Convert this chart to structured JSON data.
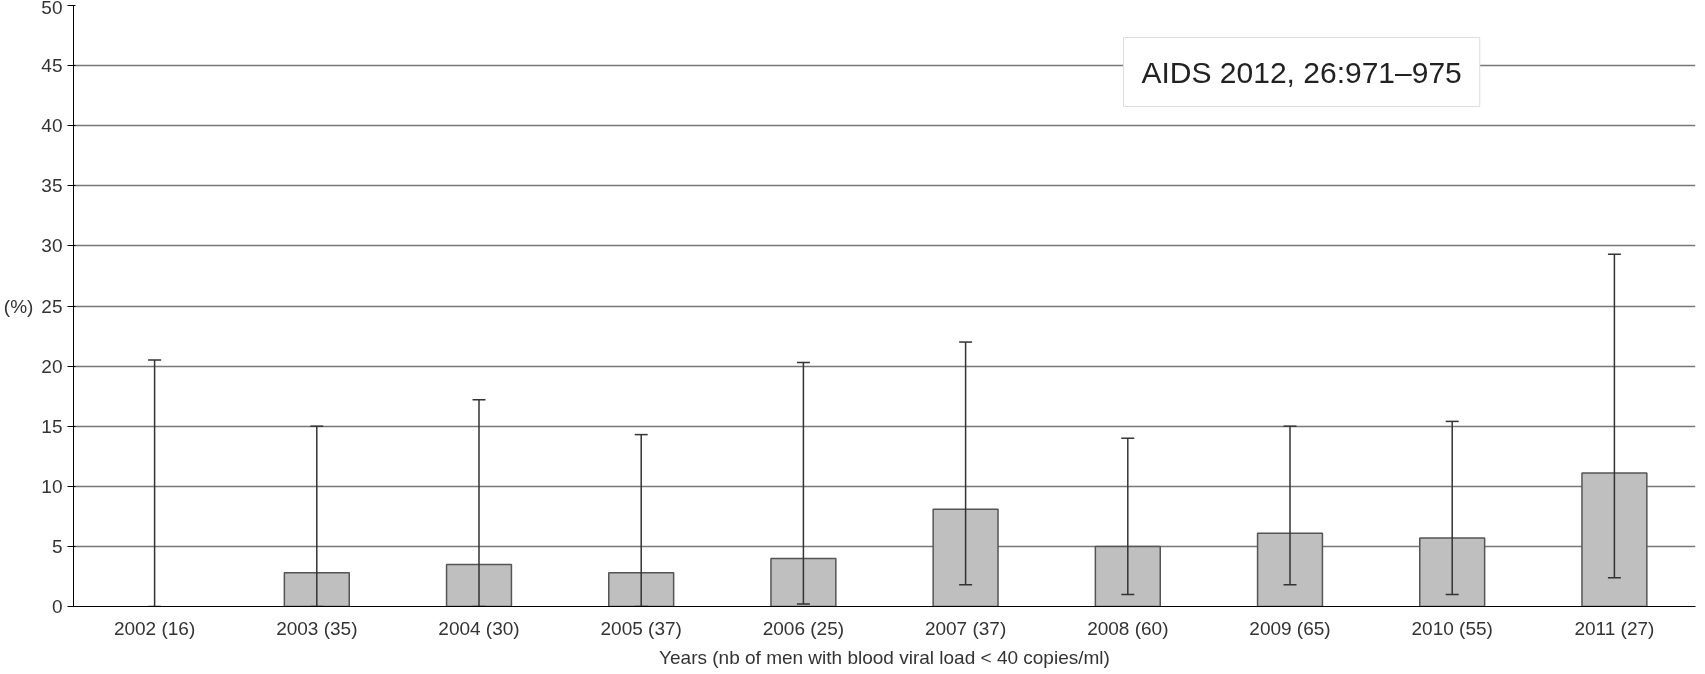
{
  "chart_data": {
    "type": "bar",
    "ylabel": "(%)",
    "xlabel": "Years (nb of men with blood viral load < 40 copies/ml)",
    "categories": [
      "2002 (16)",
      "2003 (35)",
      "2004 (30)",
      "2005 (37)",
      "2006 (25)",
      "2007 (37)",
      "2008 (60)",
      "2009 (65)",
      "2010 (55)",
      "2011 (27)"
    ],
    "values": [
      0,
      2.8,
      3.5,
      2.8,
      4.0,
      8.1,
      5.0,
      6.1,
      5.7,
      11.1
    ],
    "errors": [
      [
        0,
        20.5
      ],
      [
        0,
        15
      ],
      [
        0,
        17.2
      ],
      [
        0,
        14.3
      ],
      [
        0.2,
        20.3
      ],
      [
        1.8,
        22
      ],
      [
        1.0,
        14
      ],
      [
        1.8,
        15
      ],
      [
        1.0,
        15.4
      ],
      [
        2.4,
        29.3
      ]
    ],
    "color": "#bfbfbf",
    "ylim": [
      0,
      50
    ],
    "yticks": [
      0,
      5,
      10,
      15,
      20,
      25,
      30,
      35,
      40,
      45,
      50
    ],
    "grid": "y",
    "annotations": [
      "AIDS 2012, 26:971–975"
    ]
  }
}
